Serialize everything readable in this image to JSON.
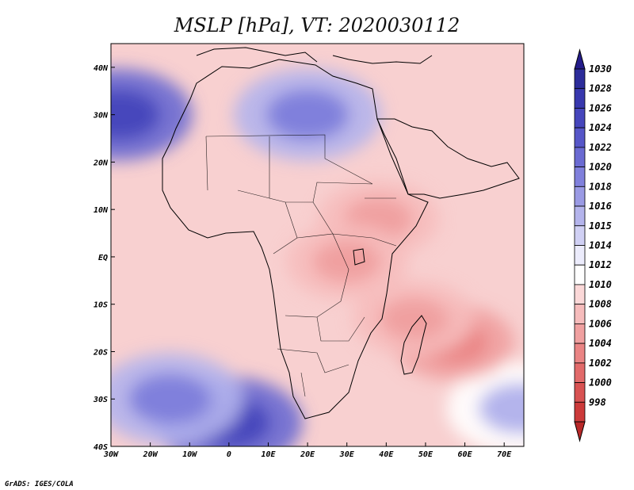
{
  "chart_data": {
    "type": "heatmap",
    "title": "MSLP [hPa], VT: 2020030112",
    "variable": "MSLP",
    "units": "hPa",
    "valid_time": "2020030112",
    "x_axis": {
      "range": [
        -30,
        75
      ],
      "ticks": [
        {
          "value": -30,
          "label": "30W"
        },
        {
          "value": -20,
          "label": "20W"
        },
        {
          "value": -10,
          "label": "10W"
        },
        {
          "value": 0,
          "label": "0"
        },
        {
          "value": 10,
          "label": "10E"
        },
        {
          "value": 20,
          "label": "20E"
        },
        {
          "value": 30,
          "label": "30E"
        },
        {
          "value": 40,
          "label": "40E"
        },
        {
          "value": 50,
          "label": "50E"
        },
        {
          "value": 60,
          "label": "60E"
        },
        {
          "value": 70,
          "label": "70E"
        }
      ]
    },
    "y_axis": {
      "range": [
        -40,
        45
      ],
      "ticks": [
        {
          "value": 40,
          "label": "40N"
        },
        {
          "value": 30,
          "label": "30N"
        },
        {
          "value": 20,
          "label": "20N"
        },
        {
          "value": 10,
          "label": "10N"
        },
        {
          "value": 0,
          "label": "EQ"
        },
        {
          "value": -10,
          "label": "10S"
        },
        {
          "value": -20,
          "label": "20S"
        },
        {
          "value": -30,
          "label": "30S"
        },
        {
          "value": -40,
          "label": "40S"
        }
      ]
    },
    "colorbar": [
      {
        "label": "1030",
        "color": "#2c2c9a"
      },
      {
        "label": "1028",
        "color": "#3838ae"
      },
      {
        "label": "1026",
        "color": "#4646bc"
      },
      {
        "label": "1024",
        "color": "#5656c8"
      },
      {
        "label": "1022",
        "color": "#6a6ad2"
      },
      {
        "label": "1020",
        "color": "#8080dc"
      },
      {
        "label": "1018",
        "color": "#9a9ae4"
      },
      {
        "label": "1016",
        "color": "#b4b4ec"
      },
      {
        "label": "1015",
        "color": "#d0d0f4"
      },
      {
        "label": "1014",
        "color": "#ececfc"
      },
      {
        "label": "1012",
        "color": "#ffffff"
      },
      {
        "label": "1010",
        "color": "#fbd8d8"
      },
      {
        "label": "1008",
        "color": "#f6bcbc"
      },
      {
        "label": "1006",
        "color": "#f0a0a0"
      },
      {
        "label": "1004",
        "color": "#ea8484"
      },
      {
        "label": "1002",
        "color": "#e26a6a"
      },
      {
        "label": "1000",
        "color": "#d85252"
      },
      {
        "label": "998",
        "color": "#cc3a3a"
      }
    ],
    "colorbar_top_color": "#241c8a",
    "colorbar_bottom_color": "#b82828",
    "pressure_features": [
      {
        "type": "high",
        "value": 1026,
        "lon": -28,
        "lat": 30
      },
      {
        "type": "high",
        "value": 1020,
        "lon": 20,
        "lat": 30
      },
      {
        "type": "high",
        "value": 1026,
        "lon": 0,
        "lat": -35
      },
      {
        "type": "high",
        "value": 1020,
        "lon": -15,
        "lat": -30
      },
      {
        "type": "high",
        "value": 1016,
        "lon": 74,
        "lat": -32
      },
      {
        "type": "low",
        "value": 1004,
        "lon": 57,
        "lat": -18
      },
      {
        "type": "low",
        "value": 1006,
        "lon": 47,
        "lat": -13
      },
      {
        "type": "low",
        "value": 1006,
        "lon": 38,
        "lat": 8
      },
      {
        "type": "low",
        "value": 1006,
        "lon": 30,
        "lat": -1
      }
    ]
  },
  "credit": "GrADS: IGES/COLA"
}
